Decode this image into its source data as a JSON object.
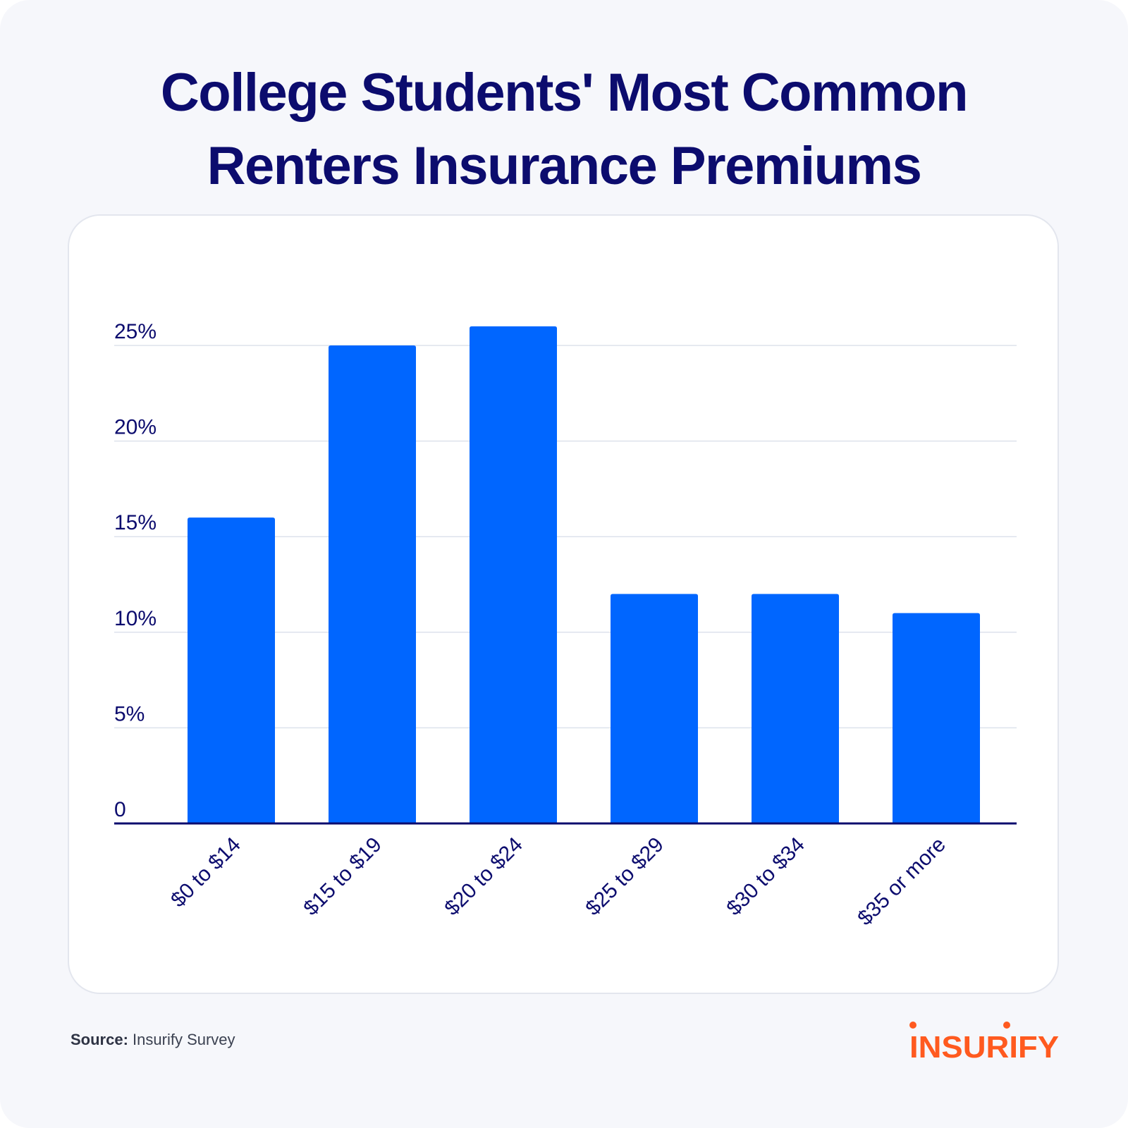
{
  "title": {
    "line1": "College Students' Most Common",
    "line2": "Renters Insurance Premiums"
  },
  "chart_data": {
    "type": "bar",
    "title": "College Students' Most Common Renters Insurance Premiums",
    "xlabel": "",
    "ylabel": "",
    "categories": [
      "$0 to $14",
      "$15 to $19",
      "$20 to $24",
      "$25 to $29",
      "$30 to $34",
      "$35 or more"
    ],
    "values": [
      16,
      25,
      26,
      12,
      12,
      11
    ],
    "ylim": [
      0,
      25
    ],
    "yticks": [
      0,
      5,
      10,
      15,
      20,
      25
    ],
    "ytick_labels": [
      "0",
      "5%",
      "10%",
      "15%",
      "20%",
      "25%"
    ],
    "grid": true,
    "legend": "none",
    "colors": {
      "bar": "#0066ff",
      "axis": "#0c0c6e",
      "grid": "#dde2ec",
      "text": "#0c0c6e"
    }
  },
  "source": {
    "label": "Source:",
    "text": "Insurify Survey"
  },
  "logo": {
    "text": "INSURIFY",
    "color": "#ff5a1f"
  }
}
